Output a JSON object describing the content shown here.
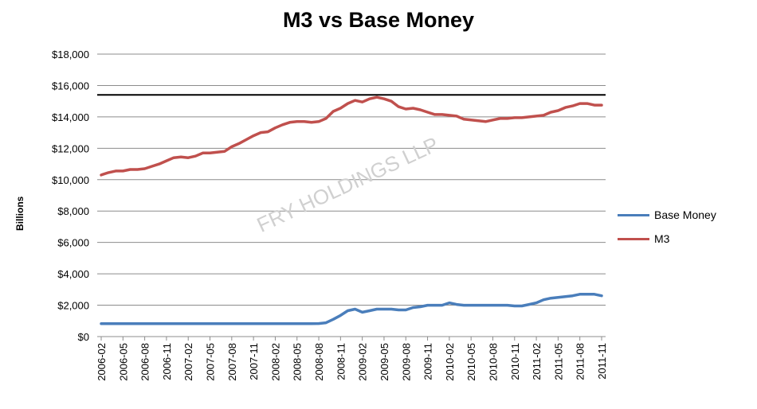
{
  "chart_data": {
    "type": "line",
    "title": "M3 vs Base Money",
    "ylabel": "Billions",
    "xlabel": "",
    "ylim": [
      0,
      18000
    ],
    "yticks": [
      "$0",
      "$2,000",
      "$4,000",
      "$6,000",
      "$8,000",
      "$10,000",
      "$12,000",
      "$14,000",
      "$16,000",
      "$18,000"
    ],
    "grid": "horizontal",
    "legend_position": "right",
    "x_tick_labels": [
      "2006-02",
      "2006-05",
      "2006-08",
      "2006-11",
      "2007-02",
      "2007-05",
      "2007-08",
      "2007-11",
      "2008-02",
      "2008-05",
      "2008-08",
      "2008-11",
      "2009-02",
      "2009-05",
      "2009-08",
      "2009-11",
      "2010-02",
      "2010-05",
      "2010-08",
      "2010-11",
      "2011-02",
      "2011-05",
      "2011-08",
      "2011-11"
    ],
    "x": [
      "2006-02",
      "2006-03",
      "2006-04",
      "2006-05",
      "2006-06",
      "2006-07",
      "2006-08",
      "2006-09",
      "2006-10",
      "2006-11",
      "2006-12",
      "2007-01",
      "2007-02",
      "2007-03",
      "2007-04",
      "2007-05",
      "2007-06",
      "2007-07",
      "2007-08",
      "2007-09",
      "2007-10",
      "2007-11",
      "2007-12",
      "2008-01",
      "2008-02",
      "2008-03",
      "2008-04",
      "2008-05",
      "2008-06",
      "2008-07",
      "2008-08",
      "2008-09",
      "2008-10",
      "2008-11",
      "2008-12",
      "2009-01",
      "2009-02",
      "2009-03",
      "2009-04",
      "2009-05",
      "2009-06",
      "2009-07",
      "2009-08",
      "2009-09",
      "2009-10",
      "2009-11",
      "2009-12",
      "2010-01",
      "2010-02",
      "2010-03",
      "2010-04",
      "2010-05",
      "2010-06",
      "2010-07",
      "2010-08",
      "2010-09",
      "2010-10",
      "2010-11",
      "2010-12",
      "2011-01",
      "2011-02",
      "2011-03",
      "2011-04",
      "2011-05",
      "2011-06",
      "2011-07",
      "2011-08",
      "2011-09",
      "2011-10",
      "2011-11"
    ],
    "series": [
      {
        "name": "Base Money",
        "color": "#4a7ebb",
        "values": [
          820,
          820,
          820,
          820,
          820,
          820,
          820,
          820,
          820,
          820,
          820,
          820,
          820,
          820,
          820,
          820,
          820,
          820,
          820,
          820,
          820,
          820,
          820,
          820,
          820,
          820,
          820,
          820,
          820,
          820,
          830,
          880,
          1100,
          1350,
          1650,
          1750,
          1550,
          1650,
          1750,
          1750,
          1750,
          1700,
          1700,
          1850,
          1900,
          2000,
          2000,
          2000,
          2150,
          2050,
          2000,
          2000,
          2000,
          2000,
          2000,
          2000,
          2000,
          1950,
          1950,
          2050,
          2150,
          2350,
          2450,
          2500,
          2550,
          2600,
          2700,
          2700,
          2700,
          2600
        ]
      },
      {
        "name": "M3",
        "color": "#c0504d",
        "values": [
          10300,
          10450,
          10550,
          10550,
          10650,
          10650,
          10700,
          10850,
          11000,
          11200,
          11400,
          11450,
          11400,
          11500,
          11700,
          11700,
          11750,
          11800,
          12100,
          12300,
          12550,
          12800,
          13000,
          13050,
          13300,
          13500,
          13650,
          13700,
          13700,
          13650,
          13700,
          13900,
          14350,
          14550,
          14850,
          15050,
          14950,
          15150,
          15250,
          15150,
          15000,
          14650,
          14500,
          14550,
          14450,
          14300,
          14150,
          14150,
          14100,
          14050,
          13850,
          13800,
          13750,
          13700,
          13800,
          13900,
          13900,
          13950,
          13950,
          14000,
          14050,
          14100,
          14300,
          14400,
          14600,
          14700,
          14850,
          14850,
          14750,
          14750
        ]
      }
    ],
    "reference_line": {
      "value": 15400,
      "color": "#000000"
    },
    "watermark": "FRY HOLDINGS LLP"
  }
}
